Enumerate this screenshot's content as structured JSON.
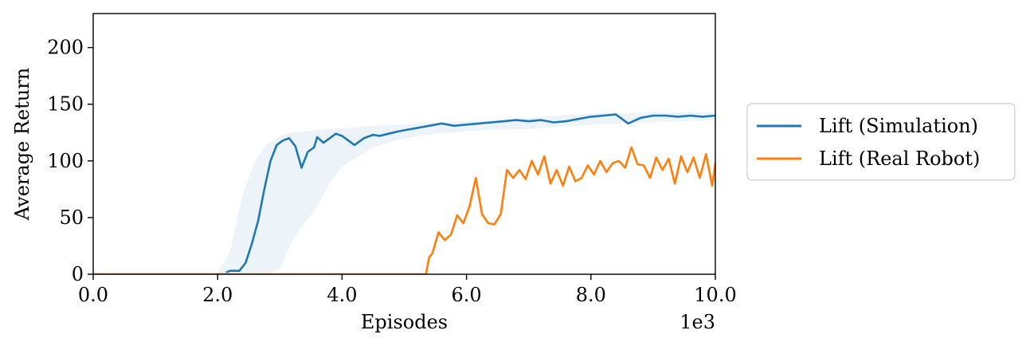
{
  "chart_data": {
    "type": "line",
    "xlabel": "Episodes",
    "ylabel": "Average Return",
    "x_offset_label": "1e3",
    "xlim": [
      0,
      10
    ],
    "ylim": [
      0,
      230
    ],
    "x_ticks": [
      0,
      2,
      4,
      6,
      8,
      10
    ],
    "x_tick_labels": [
      "0.0",
      "2.0",
      "4.0",
      "6.0",
      "8.0",
      "10.0"
    ],
    "y_ticks": [
      0,
      50,
      100,
      150,
      200
    ],
    "y_tick_labels": [
      "0",
      "50",
      "100",
      "150",
      "200"
    ],
    "grid": false,
    "legend": {
      "placement": "right, outside plot",
      "entries": [
        "Lift (Simulation)",
        "Lift (Real Robot)"
      ]
    },
    "series": [
      {
        "name": "Lift (Simulation)",
        "color": "#1f77b4",
        "x": [
          2.15,
          2.2,
          2.35,
          2.45,
          2.55,
          2.65,
          2.75,
          2.85,
          2.95,
          3.05,
          3.15,
          3.25,
          3.35,
          3.45,
          3.55,
          3.6,
          3.7,
          3.8,
          3.9,
          4.0,
          4.1,
          4.2,
          4.35,
          4.5,
          4.6,
          4.75,
          4.9,
          5.0,
          5.2,
          5.4,
          5.6,
          5.8,
          6.0,
          6.2,
          6.4,
          6.6,
          6.8,
          7.0,
          7.2,
          7.4,
          7.6,
          7.8,
          8.0,
          8.2,
          8.4,
          8.6,
          8.8,
          9.0,
          9.2,
          9.4,
          9.6,
          9.8,
          10.0
        ],
        "y": [
          2,
          3,
          3,
          10,
          27,
          47,
          75,
          100,
          114,
          118,
          120,
          113,
          94,
          108,
          112,
          121,
          116,
          120,
          124,
          122,
          118,
          114,
          120,
          123,
          122,
          124,
          126,
          127,
          129,
          131,
          133,
          131,
          132,
          133,
          134,
          135,
          136,
          135,
          136,
          134,
          135,
          137,
          139,
          140,
          141,
          133,
          138,
          140,
          140,
          139,
          140,
          139,
          140
        ],
        "band_x": [
          2.0,
          2.2,
          2.4,
          2.6,
          2.8,
          3.0,
          3.2,
          3.4,
          3.6,
          3.8,
          4.0,
          4.5,
          5.0,
          5.5,
          6.0,
          6.5,
          7.0,
          7.5,
          8.0,
          8.5,
          9.0,
          9.5,
          10.0
        ],
        "band_lower": [
          0,
          0,
          0,
          0,
          0,
          5,
          30,
          45,
          60,
          80,
          95,
          112,
          120,
          124,
          126,
          128,
          128,
          130,
          132,
          133,
          134,
          135,
          136
        ],
        "band_upper": [
          2,
          20,
          70,
          100,
          115,
          122,
          125,
          126,
          127,
          128,
          129,
          131,
          132,
          134,
          135,
          136,
          138,
          140,
          142,
          142,
          143,
          143,
          143
        ]
      },
      {
        "name": "Lift (Real Robot)",
        "color": "#ff7f0e",
        "x": [
          0,
          5.35,
          5.4,
          5.45,
          5.55,
          5.65,
          5.75,
          5.85,
          5.95,
          6.05,
          6.15,
          6.25,
          6.35,
          6.45,
          6.55,
          6.65,
          6.75,
          6.85,
          6.95,
          7.05,
          7.15,
          7.25,
          7.35,
          7.45,
          7.55,
          7.65,
          7.75,
          7.85,
          7.95,
          8.05,
          8.15,
          8.25,
          8.35,
          8.45,
          8.55,
          8.65,
          8.75,
          8.85,
          8.95,
          9.05,
          9.15,
          9.25,
          9.35,
          9.45,
          9.55,
          9.65,
          9.75,
          9.85,
          9.95,
          10.0
        ],
        "y": [
          0,
          0,
          15,
          18,
          37,
          30,
          35,
          52,
          45,
          60,
          85,
          53,
          45,
          44,
          53,
          92,
          85,
          92,
          84,
          100,
          88,
          104,
          80,
          92,
          78,
          95,
          82,
          85,
          96,
          88,
          100,
          90,
          98,
          100,
          94,
          112,
          97,
          96,
          85,
          103,
          92,
          102,
          80,
          104,
          90,
          103,
          85,
          106,
          78,
          98
        ]
      }
    ]
  }
}
